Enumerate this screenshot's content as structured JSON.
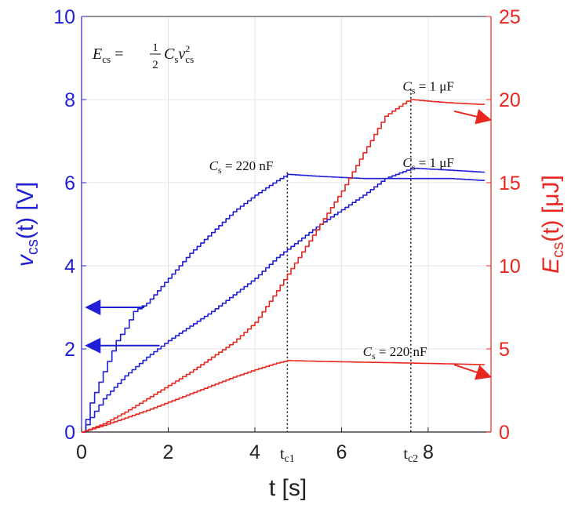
{
  "chart_data": {
    "type": "line",
    "xlabel": {
      "main": "t [s]"
    },
    "ylabel_left": {
      "main": "v",
      "sub": "cs",
      "rest": "(t) [V]"
    },
    "ylabel_right": {
      "main": "E",
      "sub": "cs",
      "rest": "(t) [μJ]"
    },
    "xlim": [
      0,
      9.45
    ],
    "ylim_left": [
      0,
      10
    ],
    "ylim_right": [
      0,
      25
    ],
    "x_ticks": [
      "0",
      "2",
      "4",
      "6",
      "8"
    ],
    "y_ticks_left": [
      "0",
      "2",
      "4",
      "6",
      "8",
      "10"
    ],
    "y_ticks_right": [
      "0",
      "5",
      "10",
      "15",
      "20",
      "25"
    ],
    "grid": true,
    "formula": {
      "lhs": "E",
      "lhs_sub": "cs",
      "eq": "=",
      "num": "1",
      "den": "2",
      "c": "C",
      "c_sub": "s",
      "v": "v",
      "v_sub": "cs",
      "v_sup": "2"
    },
    "vertical_markers": [
      {
        "x": 4.75,
        "label": "t",
        "label_sub": "c1"
      },
      {
        "x": 7.6,
        "label": "t",
        "label_sub": "c2"
      }
    ],
    "annotations": [
      {
        "c": "C",
        "c_sub": "s",
        "text": " = 220 nF",
        "x": 3.45,
        "y_left": 6.3
      },
      {
        "c": "C",
        "c_sub": "s",
        "text": " = 1 μF",
        "x": 8.1,
        "y_left": 6.38
      },
      {
        "c": "C",
        "c_sub": "s",
        "text": " = 1 μF",
        "x": 8.1,
        "y_left": 8.22
      },
      {
        "c": "C",
        "c_sub": "s",
        "text": " = 220 nF",
        "x": 7.0,
        "y_left": 1.83
      }
    ],
    "series": [
      {
        "axis": "left",
        "color": "#1f1fd6",
        "x": [
          0,
          0.1,
          0.2,
          0.4,
          0.6,
          0.8,
          1.0,
          1.2,
          1.5,
          2.0,
          2.5,
          3.0,
          3.5,
          4.0,
          4.5,
          4.75,
          5.5,
          6.5,
          7.5,
          8.5,
          9.3
        ],
        "y": [
          0,
          0.3,
          0.7,
          1.2,
          1.7,
          2.2,
          2.5,
          2.9,
          3.1,
          3.7,
          4.3,
          4.8,
          5.3,
          5.7,
          6.05,
          6.2,
          6.15,
          6.1,
          6.1,
          6.1,
          6.05
        ]
      },
      {
        "axis": "left",
        "color": "#1f1fd6",
        "x": [
          0,
          0.2,
          0.5,
          1.0,
          1.5,
          2.0,
          2.5,
          3.0,
          3.5,
          4.0,
          4.5,
          5.0,
          5.5,
          6.0,
          6.5,
          7.0,
          7.5,
          7.6,
          8.5,
          9.3
        ],
        "y": [
          0,
          0.35,
          0.8,
          1.35,
          1.8,
          2.2,
          2.55,
          2.9,
          3.3,
          3.7,
          4.2,
          4.6,
          5.0,
          5.35,
          5.7,
          6.1,
          6.3,
          6.35,
          6.3,
          6.25
        ]
      },
      {
        "axis": "right",
        "color": "#e8271f",
        "x": [
          0,
          0.5,
          1.0,
          1.5,
          2.0,
          2.5,
          3.0,
          3.5,
          4.0,
          4.5,
          4.75,
          5.5,
          6.5,
          7.5,
          8.5,
          9.3
        ],
        "y": [
          0,
          0.4,
          0.85,
          1.3,
          1.8,
          2.3,
          2.8,
          3.3,
          3.75,
          4.15,
          4.3,
          4.25,
          4.2,
          4.15,
          4.1,
          4.05
        ]
      },
      {
        "axis": "right",
        "color": "#e8271f",
        "x": [
          0,
          0.5,
          1.0,
          1.5,
          2.0,
          2.5,
          3.0,
          3.5,
          4.0,
          4.5,
          5.0,
          5.5,
          6.0,
          6.5,
          7.0,
          7.5,
          7.6,
          8.0,
          8.5,
          9.3
        ],
        "y": [
          0,
          0.5,
          1.2,
          2.0,
          2.8,
          3.6,
          4.5,
          5.4,
          6.6,
          8.5,
          10.5,
          12.5,
          14.5,
          16.8,
          19.0,
          19.9,
          20.0,
          19.9,
          19.8,
          19.7
        ]
      }
    ],
    "arrows": [
      {
        "axis": "left",
        "x_from": 1.45,
        "x_to": 0.15,
        "y": 3.0
      },
      {
        "axis": "left",
        "x_from": 1.8,
        "x_to": 0.15,
        "y": 2.08
      },
      {
        "axis": "right",
        "x_from": 8.6,
        "x_to": 9.4,
        "y_from": 19.3,
        "y_to": 18.8
      },
      {
        "axis": "right",
        "x_from": 8.6,
        "x_to": 9.4,
        "y_from": 4.05,
        "y_to": 3.35
      }
    ]
  }
}
